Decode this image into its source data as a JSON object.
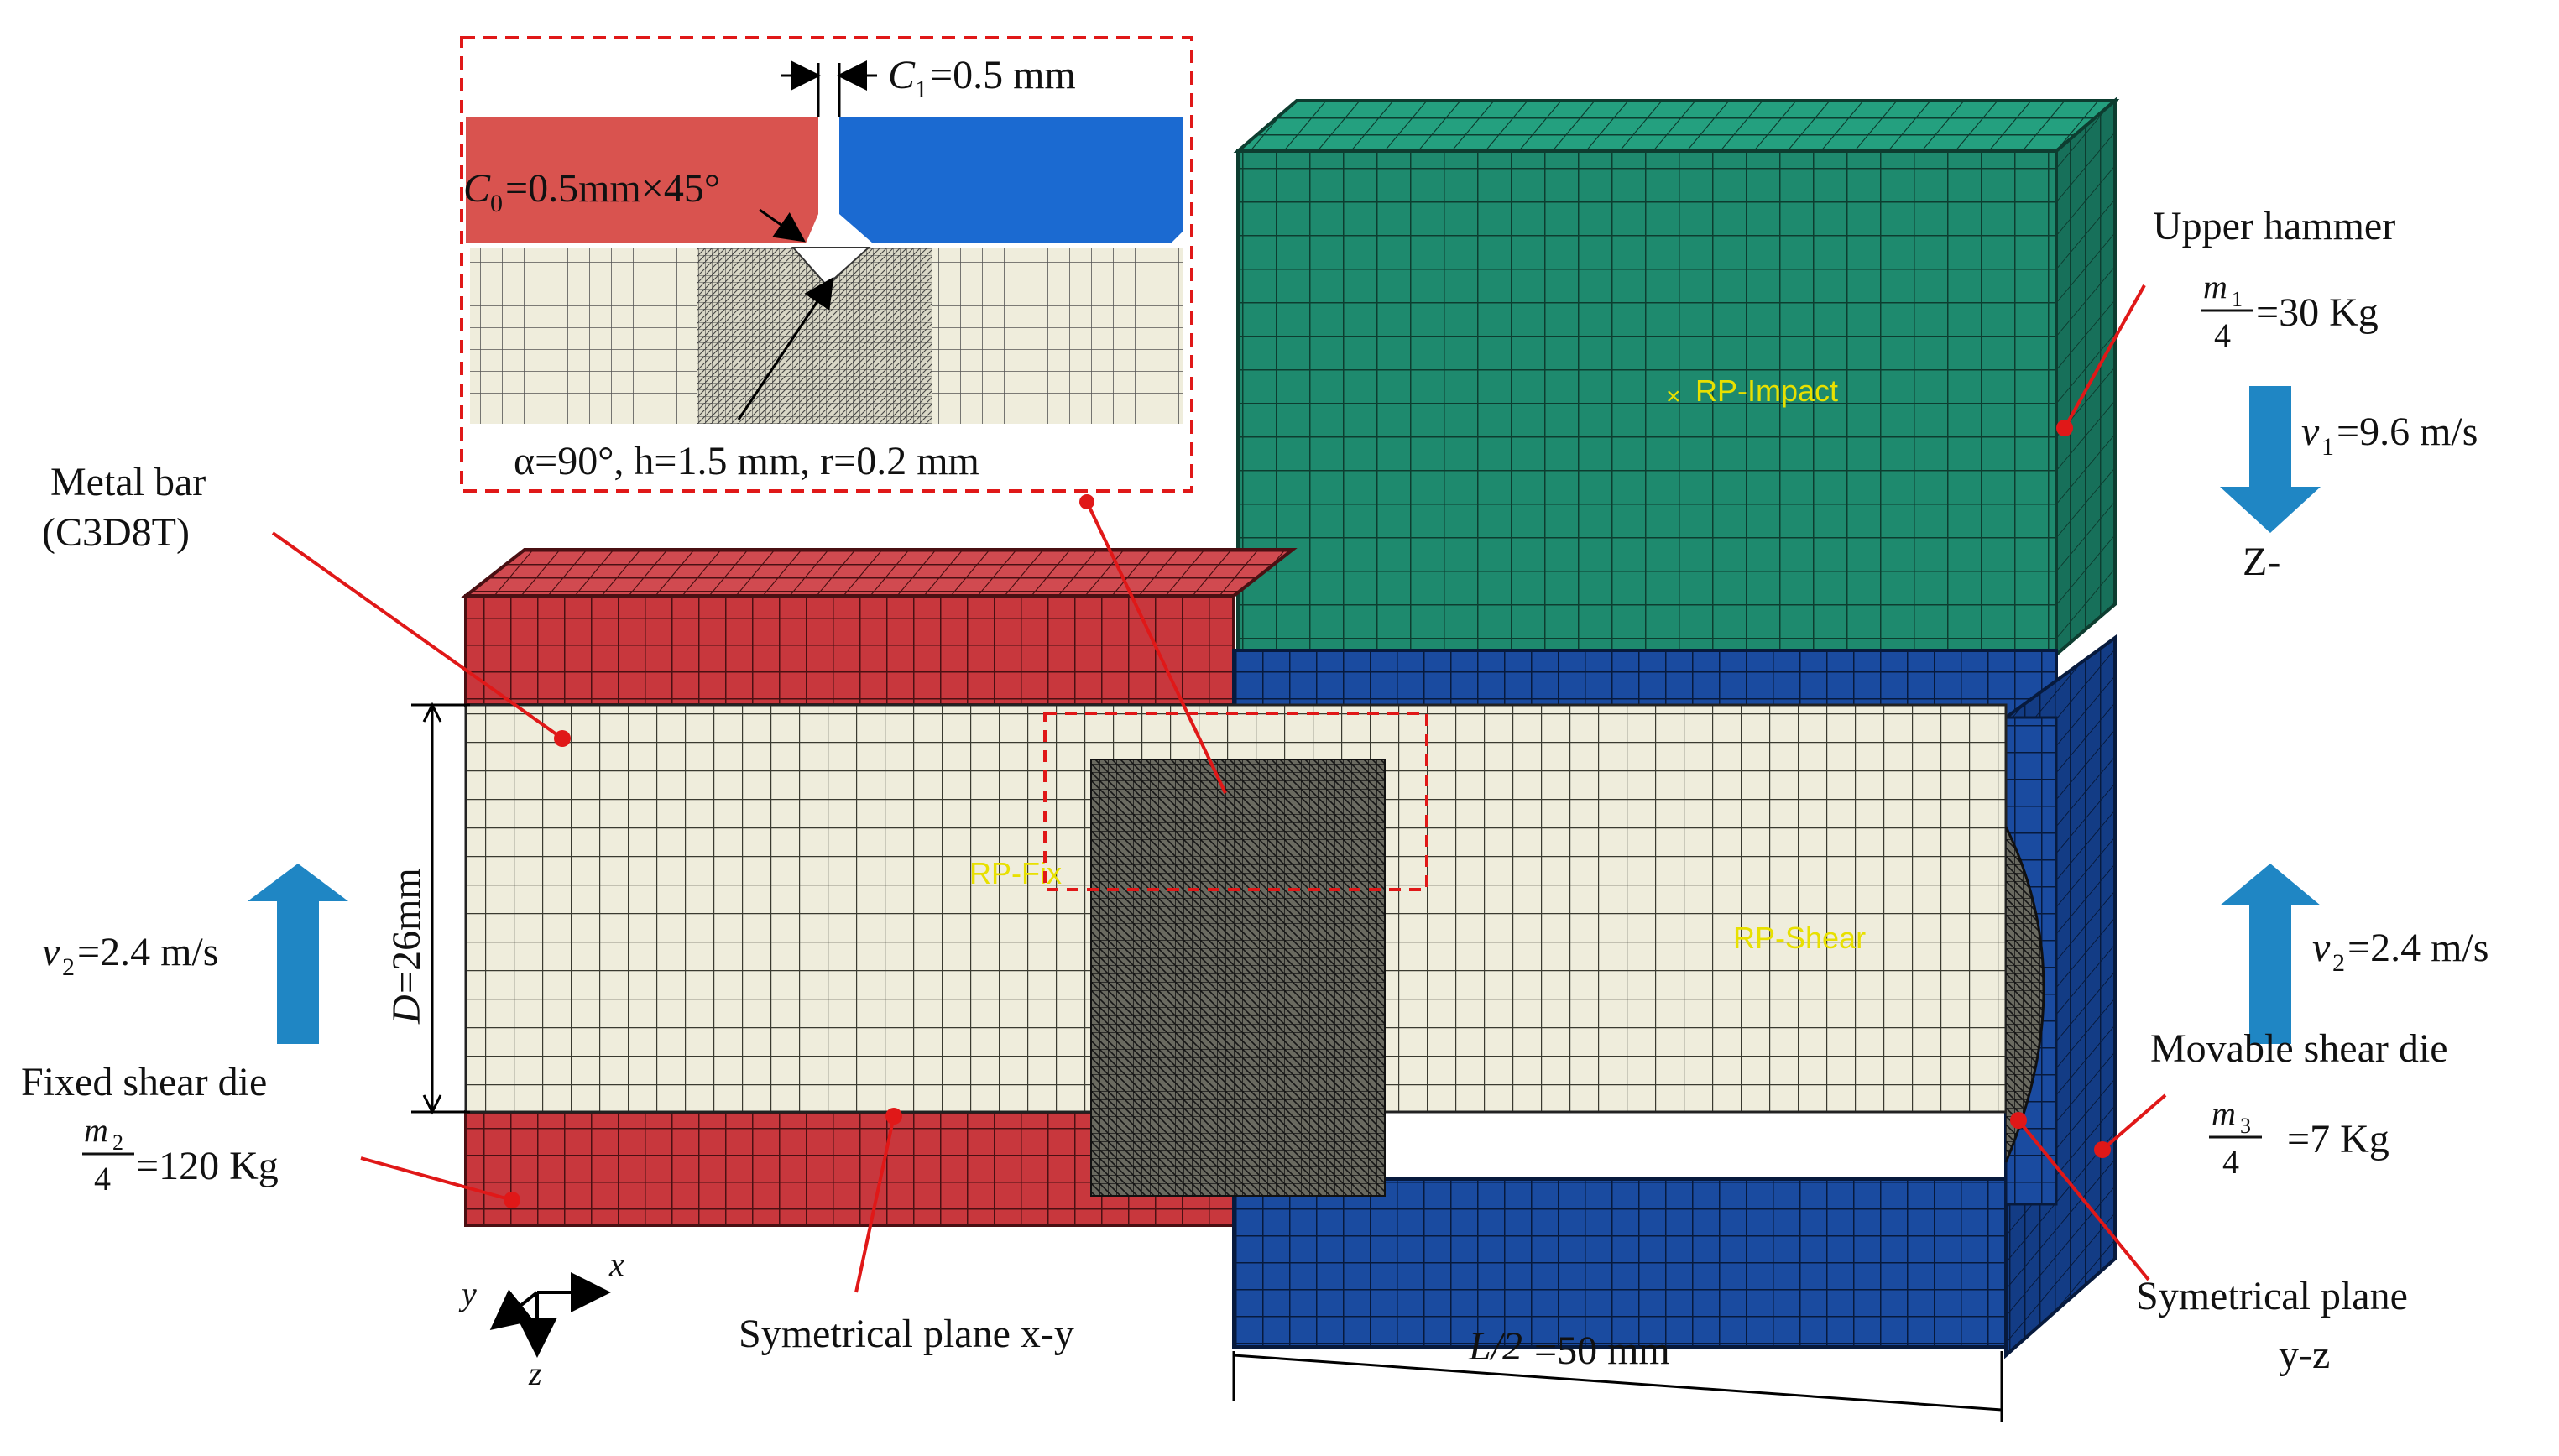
{
  "labels": {
    "c1": "=0.5 mm",
    "c1_sym": "C",
    "c1_sub": "1",
    "c0": "=0.5mm×45°",
    "c0_sym": "C",
    "c0_sub": "0",
    "notch_params": "α=90°, h=1.5 mm, r=0.2 mm",
    "metal_bar": "Metal bar",
    "metal_bar_type": "(C3D8T)",
    "upper_hammer": "Upper hammer",
    "m1_num": "m",
    "m1_sub": "1",
    "m1_den": "4",
    "m1_val": "=30 Kg",
    "v1_sym": "v",
    "v1_sub": "1",
    "v1_val": "=9.6 m/s",
    "z_minus": "Z-",
    "rp_impact": "RP-Impact",
    "rp_fix": "RP-Fix",
    "rp_shear": "RP-Shear",
    "diameter_sym": "D",
    "diameter_val": "=26mm",
    "v2_left_sym": "v",
    "v2_left_sub": "2",
    "v2_left_val": "=2.4 m/s",
    "v2_right_sym": "v",
    "v2_right_sub": "2",
    "v2_right_val": "=2.4 m/s",
    "fixed_die": "Fixed shear die",
    "m2_num": "m",
    "m2_sub": "2",
    "m2_den": "4",
    "m2_val": "=120 Kg",
    "movable_die": "Movable shear die",
    "m3_num": "m",
    "m3_sub": "3",
    "m3_den": "4",
    "m3_val": "=7 Kg",
    "sym_xy": "Symetrical plane x-y",
    "sym_yz_1": "Symetrical plane",
    "sym_yz_2": "y-z",
    "half_length_sym": "L/2",
    "half_length_val": "=50 mm",
    "axis_x": "x",
    "axis_y": "y",
    "axis_z": "z"
  },
  "colors": {
    "hammer": "#1e8a6e",
    "fixed_die": "#c8373d",
    "movable_die": "#1a4ba0",
    "bar": "#efeddc",
    "leader": "#e01818",
    "arrow": "#1f86c4",
    "rp": "#e8e000"
  }
}
